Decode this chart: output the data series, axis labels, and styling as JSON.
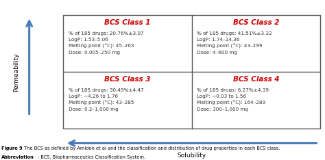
{
  "classes": [
    "BCS Class 1",
    "BCS Class 2",
    "BCS Class 3",
    "BCS Class 4"
  ],
  "class_color": "#cc0000",
  "text_color": "#333333",
  "cell_texts": [
    "% of 185 drugs: 20.76%±3.07\nLogP: 1.53–5.06\nMelting point (°C): 45–263\nDose: 0.005–250 mg",
    "% of 185 drugs: 41.51%±3.32\nLogP: 1.74–14.36\nMelting point (°C): 43–299\nDose: 4–600 mg",
    "% of 185 drugs: 30.49%±4.47\nLogP: −4.26 to 1.76\nMelting point (°C): 43–285\nDose: 0.2–1,000 mg",
    "% of 185 drugs: 6.27%±4.39\nLogP: −0.03 to 1.56\nMelting point (°C): 164–289\nDose: 300–1,000 mg"
  ],
  "ylabel": "Permeability",
  "xlabel": "Solubility",
  "arrow_color": "#4a7aba",
  "caption_bold": "Figure 9",
  "caption_normal": " The BCS as defined by Amidon et al",
  "caption2": " and the classification and distribution of drug properties in each BCS class.",
  "abbrev_bold": "Abbreviation",
  "abbrev_normal": ": BCS, Biopharmaceutics Classification System.",
  "background": "#ffffff",
  "border_color": "#555555",
  "gl": 0.195,
  "gr": 0.985,
  "gt": 0.905,
  "gb": 0.195,
  "title_fontsize": 7.5,
  "body_fontsize": 5.2,
  "caption_fontsize": 4.8,
  "axis_label_fontsize": 6.5
}
